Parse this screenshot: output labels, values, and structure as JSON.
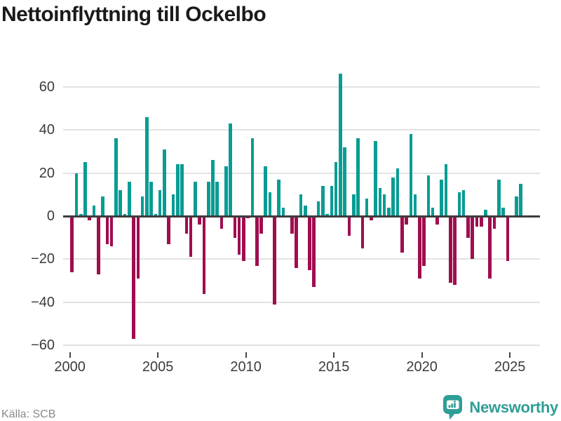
{
  "title": "Nettoinflyttning till Ockelbo",
  "footer": {
    "source": "Källa: SCB",
    "brand": "Newsworthy"
  },
  "colors": {
    "positive": "#089c94",
    "negative": "#a00d4f",
    "brand": "#2f9e96",
    "title": "#1a1a1a",
    "axis": "#3d3d3d",
    "grid": "#e2e2e2",
    "tick_label": "#3c3c3c",
    "source_text": "#8a8a8a"
  },
  "chart_data": {
    "type": "bar",
    "title": "Nettoinflyttning till Ockelbo",
    "frequency": "quarterly",
    "start": "2000-Q1",
    "end": "2025-Q3",
    "xlabel": "",
    "ylabel": "",
    "ylim": [
      -60,
      70
    ],
    "grid": true,
    "legend": false,
    "x_tick_labels": [
      "2000",
      "2005",
      "2010",
      "2015",
      "2020",
      "2025"
    ],
    "x_tick_years": [
      2000,
      2005,
      2010,
      2015,
      2020,
      2025
    ],
    "y_ticks": [
      60,
      40,
      20,
      0,
      -20,
      -40,
      -60
    ],
    "y_tick_labels": [
      "60",
      "40",
      "20",
      "0",
      "−20",
      "−40",
      "−60"
    ],
    "series": [
      {
        "name": "Nettoinflyttning",
        "values": [
          -26,
          20,
          1,
          25,
          -2,
          5,
          -27,
          9,
          -13,
          -14,
          36,
          12,
          1,
          16,
          -57,
          -29,
          9,
          46,
          16,
          1,
          12,
          31,
          -13,
          10,
          24,
          24,
          -8,
          -19,
          16,
          -4,
          -36,
          16,
          26,
          16,
          -6,
          23,
          43,
          -10,
          -18,
          -21,
          -1,
          36,
          -23,
          -8,
          23,
          11,
          -41,
          17,
          4,
          0,
          -8,
          -24,
          10,
          5,
          -25,
          -33,
          7,
          14,
          1,
          14,
          25,
          66,
          32,
          -9,
          10,
          36,
          -15,
          8,
          -2,
          35,
          13,
          10,
          4,
          18,
          22,
          -17,
          -4,
          38,
          10,
          -29,
          -23,
          19,
          4,
          -4,
          17,
          24,
          -31,
          -32,
          11,
          12,
          -10,
          -20,
          -5,
          -5,
          3,
          -29,
          -6,
          17,
          4,
          -21,
          0,
          9,
          15
        ]
      }
    ]
  }
}
